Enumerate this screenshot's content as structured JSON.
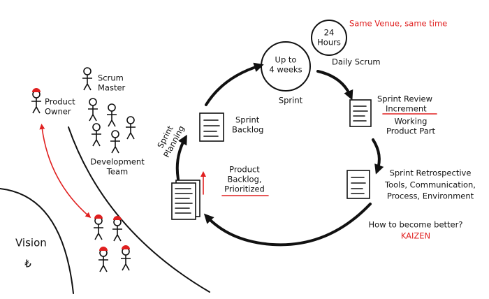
{
  "vision": {
    "label": "Vision",
    "symbol": "₺"
  },
  "roles": {
    "scrum_master": [
      "Scrum",
      "Master"
    ],
    "product_owner": [
      "Product",
      "Owner"
    ],
    "development_team": [
      "Development",
      "Team"
    ]
  },
  "artifacts": {
    "product_backlog": [
      "Product",
      "Backlog,",
      "Prioritized"
    ],
    "sprint_backlog": [
      "Sprint",
      "Backlog"
    ],
    "sprint_planning": [
      "Sprint",
      "Planning"
    ]
  },
  "sprint": {
    "duration": [
      "Up to",
      "4 weeks"
    ],
    "label": "Sprint",
    "daily_scrum": {
      "duration": [
        "24",
        "Hours"
      ],
      "label": "Daily Scrum",
      "note": "Same Venue, same time"
    }
  },
  "review": {
    "title": "Sprint Review",
    "output": "Increment",
    "description": [
      "Working",
      "Product Part"
    ]
  },
  "retrospective": {
    "title": "Sprint Retrospective",
    "topics": [
      "Tools, Communication,",
      "Process, Environment"
    ],
    "question": "How to become better?",
    "method": "KAIZEN"
  }
}
